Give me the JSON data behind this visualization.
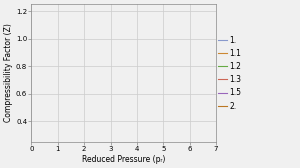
{
  "Tr_values": [
    1.0,
    1.1,
    1.2,
    1.3,
    1.5,
    2.0
  ],
  "colors": [
    "#8899cc",
    "#cc8833",
    "#66aa44",
    "#cc6655",
    "#9966bb",
    "#bb7722"
  ],
  "legend_labels": [
    "1.",
    "1.1",
    "1.2",
    "1.3",
    "1.5",
    "2."
  ],
  "xlabel": "Reduced Pressure (pᵣ)",
  "ylabel": "Compressibility Factor (Z)",
  "xlim": [
    0,
    7
  ],
  "ylim": [
    0.25,
    1.25
  ],
  "xticks": [
    0,
    1,
    2,
    3,
    4,
    5,
    6,
    7
  ],
  "yticks": [
    0.4,
    0.6,
    0.8,
    1.0,
    1.2
  ],
  "grid_color": "#cccccc",
  "bg_color": "#f0f0f0",
  "figsize": [
    3.0,
    1.68
  ],
  "dpi": 100
}
